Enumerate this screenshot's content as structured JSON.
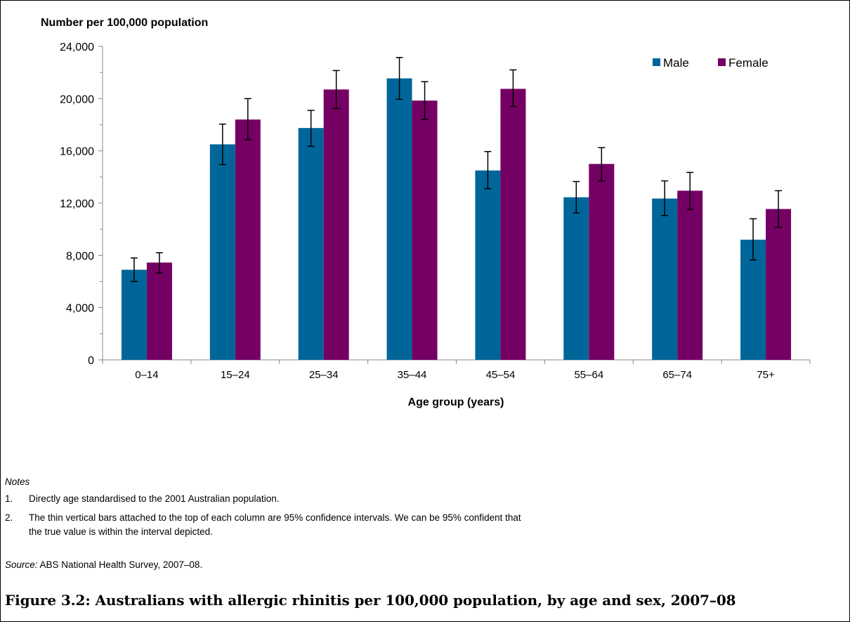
{
  "chart_data": {
    "type": "bar",
    "ylabel": "Number per 100,000 population",
    "xlabel": "Age group (years)",
    "ylim": [
      0,
      24000
    ],
    "yticks": [
      0,
      4000,
      8000,
      12000,
      16000,
      20000,
      24000
    ],
    "ytick_labels": [
      "0",
      "4,000",
      "8,000",
      "12,000",
      "16,000",
      "20,000",
      "24,000"
    ],
    "categories": [
      "0–14",
      "15–24",
      "25–34",
      "35–44",
      "45–54",
      "55–64",
      "65–74",
      "75+"
    ],
    "series": [
      {
        "name": "Male",
        "color": "#006699",
        "values": [
          6900,
          16500,
          17750,
          21550,
          14500,
          12450,
          12350,
          9200
        ],
        "ci_low": [
          6000,
          14950,
          16350,
          19950,
          13100,
          11250,
          11050,
          7650
        ],
        "ci_high": [
          7800,
          18050,
          19100,
          23150,
          15950,
          13650,
          13700,
          10800
        ]
      },
      {
        "name": "Female",
        "color": "#750064",
        "values": [
          7450,
          18400,
          20700,
          19850,
          20750,
          15000,
          12950,
          11550
        ],
        "ci_low": [
          6650,
          16850,
          19250,
          18400,
          19400,
          13700,
          11500,
          10150
        ],
        "ci_high": [
          8200,
          20000,
          22150,
          21300,
          22200,
          16250,
          14350,
          12950
        ]
      }
    ],
    "grid": false,
    "legend_position": "top-right",
    "error_bars": "95% confidence intervals"
  },
  "notes": {
    "heading": "Notes",
    "items": [
      {
        "num": "1.",
        "text": "Directly age standardised to the 2001 Australian population."
      },
      {
        "num": "2.",
        "text": "The thin vertical bars attached to the top of each column are 95% confidence intervals. We can be 95% confident that the true value is within the interval depicted."
      }
    ]
  },
  "source": {
    "label": "Source:",
    "text": "ABS National Health Survey, 2007–08."
  },
  "caption": "Figure 3.2: Australians with allergic rhinitis per 100,000 population, by age and sex, 2007–08"
}
